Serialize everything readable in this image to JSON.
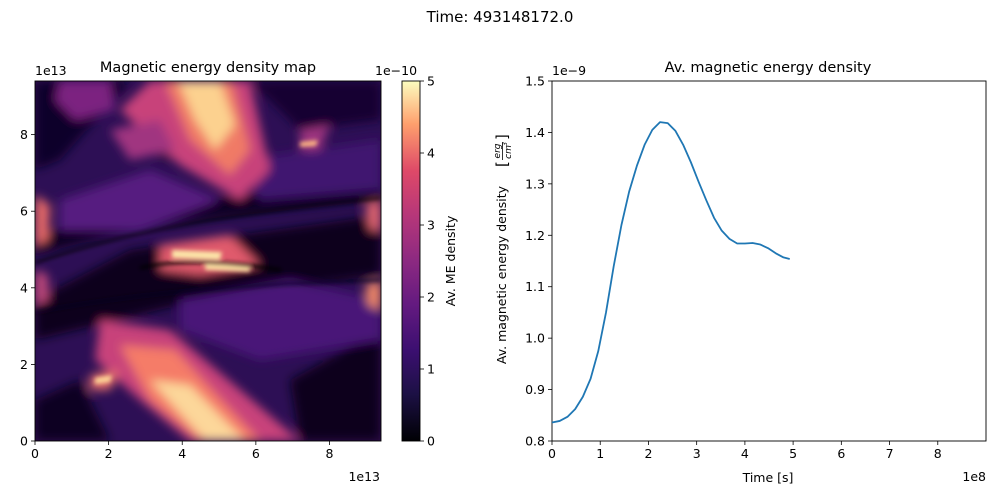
{
  "figure": {
    "suptitle": "Time: 493148172.0"
  },
  "chart_data": [
    {
      "type": "heatmap",
      "title": "Magnetic energy density map",
      "xlabel": "",
      "ylabel": "",
      "xlim": [
        0,
        9.4
      ],
      "ylim": [
        0,
        9.4
      ],
      "x_offset_label": "1e13",
      "y_offset_label": "1e13",
      "x_ticks": [
        0,
        2,
        4,
        6,
        8
      ],
      "y_ticks": [
        0,
        2,
        4,
        6,
        8
      ],
      "colormap": "magma",
      "colorbar": {
        "label": "Av. ME density",
        "offset_label": "1e−10",
        "range": [
          0,
          5
        ],
        "ticks": [
          0,
          1,
          2,
          3,
          4,
          5
        ]
      }
    },
    {
      "type": "line",
      "title": "Av. magnetic energy density",
      "xlabel": "Time [s]",
      "ylabel": "Av. magnetic energy density",
      "ylabel_unit": {
        "numerator": "erg",
        "denominator": "cm",
        "exponent": "3"
      },
      "x_offset_label": "1e8",
      "y_offset_label": "1e−9",
      "xlim": [
        0,
        9.0
      ],
      "ylim": [
        0.8,
        1.5
      ],
      "x_ticks": [
        0,
        1,
        2,
        3,
        4,
        5,
        6,
        7,
        8
      ],
      "y_ticks": [
        0.8,
        0.9,
        1.0,
        1.1,
        1.2,
        1.3,
        1.4,
        1.5
      ],
      "series": [
        {
          "color": "#1f77b4",
          "x": [
            0.0,
            0.16,
            0.32,
            0.48,
            0.64,
            0.8,
            0.96,
            1.12,
            1.28,
            1.44,
            1.6,
            1.76,
            1.92,
            2.08,
            2.24,
            2.4,
            2.56,
            2.72,
            2.88,
            3.04,
            3.2,
            3.36,
            3.52,
            3.68,
            3.84,
            4.0,
            4.16,
            4.32,
            4.48,
            4.64,
            4.8,
            4.93
          ],
          "values": [
            0.836,
            0.839,
            0.847,
            0.862,
            0.886,
            0.921,
            0.975,
            1.05,
            1.14,
            1.22,
            1.285,
            1.335,
            1.376,
            1.405,
            1.42,
            1.418,
            1.403,
            1.376,
            1.342,
            1.304,
            1.268,
            1.234,
            1.209,
            1.193,
            1.184,
            1.184,
            1.185,
            1.182,
            1.175,
            1.165,
            1.157,
            1.154
          ]
        }
      ]
    }
  ]
}
